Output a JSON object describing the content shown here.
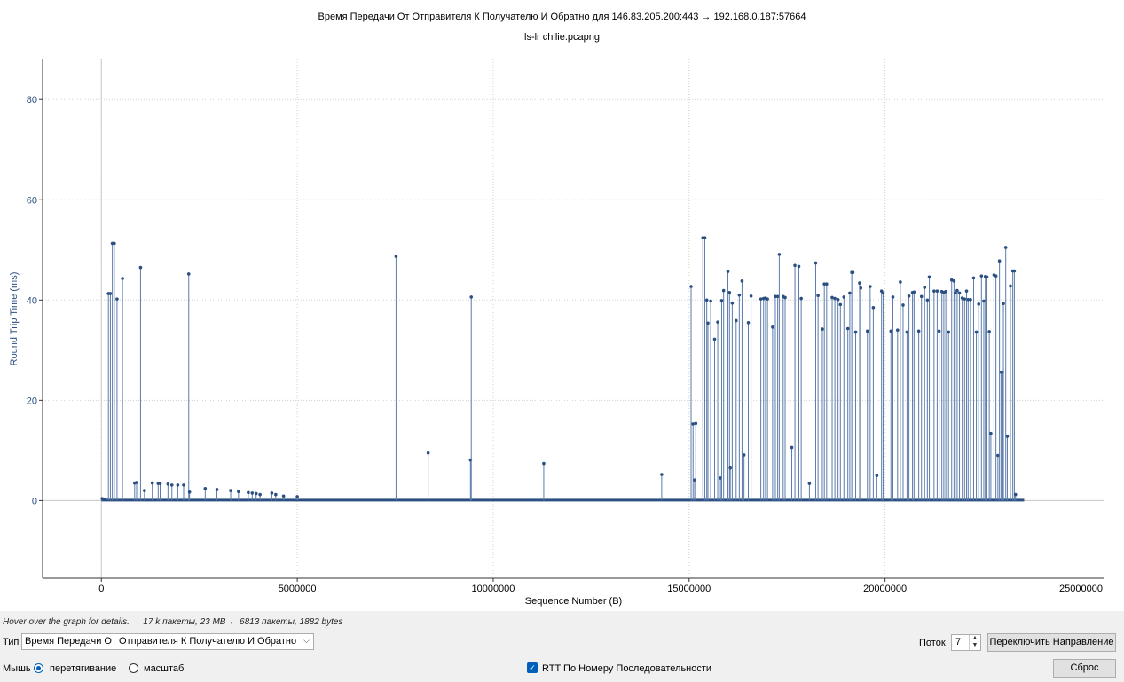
{
  "chart_data": {
    "type": "scatter",
    "title": "Время Передачи От Отправителя К Получателю И Обратно для 146.83.205.200:443 → 192.168.0.187:57664",
    "subtitle": "ls-lr chilie.pcapng",
    "xlabel": "Sequence Number (B)",
    "ylabel": "Round Trip Time (ms)",
    "xlim": [
      -1500000,
      25600000
    ],
    "ylim": [
      -15.5,
      88
    ],
    "x_ticks": [
      0,
      5000000,
      10000000,
      15000000,
      20000000,
      25000000
    ],
    "y_ticks": [
      0,
      20,
      40,
      60,
      80
    ],
    "grid": true,
    "style": "impulse",
    "color": "#2b4f81",
    "series_points": [
      [
        20000,
        0.4
      ],
      [
        100000,
        0.3
      ],
      [
        180000,
        41.3
      ],
      [
        230000,
        41.3
      ],
      [
        280000,
        51.3
      ],
      [
        330000,
        51.3
      ],
      [
        400000,
        40.2
      ],
      [
        540000,
        44.3
      ],
      [
        850000,
        3.5
      ],
      [
        900000,
        3.6
      ],
      [
        1000000,
        46.5
      ],
      [
        1100000,
        2.0
      ],
      [
        1300000,
        3.5
      ],
      [
        1450000,
        3.4
      ],
      [
        1500000,
        3.4
      ],
      [
        1700000,
        3.3
      ],
      [
        1800000,
        3.1
      ],
      [
        1950000,
        3.1
      ],
      [
        2100000,
        3.1
      ],
      [
        2230000,
        45.2
      ],
      [
        2250000,
        1.7
      ],
      [
        2650000,
        2.4
      ],
      [
        2950000,
        2.2
      ],
      [
        3300000,
        2.0
      ],
      [
        3500000,
        1.8
      ],
      [
        3750000,
        1.6
      ],
      [
        3850000,
        1.5
      ],
      [
        3950000,
        1.4
      ],
      [
        4050000,
        1.2
      ],
      [
        4350000,
        1.5
      ],
      [
        4450000,
        1.2
      ],
      [
        4650000,
        0.9
      ],
      [
        5000000,
        0.8
      ],
      [
        7520000,
        48.7
      ],
      [
        8340000,
        9.5
      ],
      [
        9420000,
        8.1
      ],
      [
        9440000,
        40.6
      ],
      [
        11290000,
        7.4
      ],
      [
        14300000,
        5.2
      ],
      [
        15050000,
        42.7
      ],
      [
        15100000,
        15.3
      ],
      [
        15140000,
        4.1
      ],
      [
        15170000,
        15.4
      ],
      [
        15350000,
        52.4
      ],
      [
        15400000,
        52.4
      ],
      [
        15450000,
        40.0
      ],
      [
        15480000,
        35.4
      ],
      [
        15550000,
        39.8
      ],
      [
        15650000,
        32.2
      ],
      [
        15730000,
        35.6
      ],
      [
        15800000,
        4.5
      ],
      [
        15830000,
        39.9
      ],
      [
        15880000,
        41.9
      ],
      [
        15990000,
        45.7
      ],
      [
        16030000,
        41.5
      ],
      [
        16050000,
        6.5
      ],
      [
        16100000,
        39.4
      ],
      [
        16200000,
        35.9
      ],
      [
        16280000,
        41.0
      ],
      [
        16350000,
        43.8
      ],
      [
        16400000,
        9.1
      ],
      [
        16510000,
        35.5
      ],
      [
        16580000,
        40.8
      ],
      [
        16830000,
        40.2
      ],
      [
        16900000,
        40.3
      ],
      [
        16950000,
        40.4
      ],
      [
        17000000,
        40.2
      ],
      [
        17130000,
        34.6
      ],
      [
        17200000,
        40.7
      ],
      [
        17260000,
        40.7
      ],
      [
        17300000,
        49.1
      ],
      [
        17400000,
        40.7
      ],
      [
        17450000,
        40.5
      ],
      [
        17620000,
        10.6
      ],
      [
        17700000,
        46.9
      ],
      [
        17800000,
        46.7
      ],
      [
        17860000,
        40.3
      ],
      [
        18070000,
        3.4
      ],
      [
        18230000,
        47.4
      ],
      [
        18290000,
        40.9
      ],
      [
        18400000,
        34.2
      ],
      [
        18450000,
        43.2
      ],
      [
        18510000,
        43.2
      ],
      [
        18650000,
        40.5
      ],
      [
        18720000,
        40.3
      ],
      [
        18800000,
        40.1
      ],
      [
        18860000,
        39.1
      ],
      [
        18950000,
        40.6
      ],
      [
        19050000,
        34.3
      ],
      [
        19100000,
        41.4
      ],
      [
        19150000,
        45.5
      ],
      [
        19180000,
        45.5
      ],
      [
        19250000,
        33.6
      ],
      [
        19350000,
        43.4
      ],
      [
        19380000,
        42.4
      ],
      [
        19550000,
        33.8
      ],
      [
        19620000,
        42.7
      ],
      [
        19700000,
        38.5
      ],
      [
        19790000,
        5.0
      ],
      [
        19910000,
        41.8
      ],
      [
        19950000,
        41.4
      ],
      [
        20150000,
        33.8
      ],
      [
        20200000,
        40.6
      ],
      [
        20320000,
        34.0
      ],
      [
        20390000,
        43.6
      ],
      [
        20460000,
        39.0
      ],
      [
        20560000,
        33.6
      ],
      [
        20610000,
        40.8
      ],
      [
        20700000,
        41.5
      ],
      [
        20740000,
        41.6
      ],
      [
        20860000,
        33.8
      ],
      [
        20930000,
        40.7
      ],
      [
        21010000,
        42.5
      ],
      [
        21080000,
        40.0
      ],
      [
        21130000,
        44.6
      ],
      [
        21250000,
        41.8
      ],
      [
        21330000,
        41.8
      ],
      [
        21380000,
        33.8
      ],
      [
        21450000,
        41.7
      ],
      [
        21500000,
        41.5
      ],
      [
        21550000,
        41.7
      ],
      [
        21620000,
        33.6
      ],
      [
        21700000,
        44.0
      ],
      [
        21760000,
        43.8
      ],
      [
        21790000,
        41.4
      ],
      [
        21840000,
        41.9
      ],
      [
        21900000,
        41.4
      ],
      [
        21970000,
        40.4
      ],
      [
        22030000,
        40.2
      ],
      [
        22080000,
        41.8
      ],
      [
        22120000,
        40.1
      ],
      [
        22180000,
        40.1
      ],
      [
        22260000,
        44.4
      ],
      [
        22330000,
        33.6
      ],
      [
        22390000,
        39.2
      ],
      [
        22460000,
        44.8
      ],
      [
        22520000,
        39.8
      ],
      [
        22560000,
        44.7
      ],
      [
        22600000,
        44.6
      ],
      [
        22660000,
        33.7
      ],
      [
        22700000,
        13.4
      ],
      [
        22780000,
        45.0
      ],
      [
        22830000,
        44.8
      ],
      [
        22880000,
        9.0
      ],
      [
        22920000,
        47.8
      ],
      [
        22960000,
        25.6
      ],
      [
        23000000,
        25.6
      ],
      [
        23020000,
        39.3
      ],
      [
        23080000,
        50.5
      ],
      [
        23120000,
        12.8
      ],
      [
        23200000,
        42.8
      ],
      [
        23260000,
        45.8
      ],
      [
        23300000,
        45.8
      ],
      [
        23330000,
        1.2
      ]
    ],
    "baseline_span": [
      0,
      23550000
    ]
  },
  "hint": "Hover over the graph for details. → 17 k пакеты, 23 MB ← 6813 пакеты, 1882 bytes",
  "controls": {
    "type_label": "Тип",
    "type_value": "Время Передачи От Отправителя К Получателю И Обратно",
    "stream_label": "Поток",
    "stream_value": "7",
    "switch_direction": "Переключить Направление",
    "mouse_label": "Мышь",
    "drag_label": "перетягивание",
    "zoom_label": "масштаб",
    "rtt_seq_label": "RTT По Номеру Последовательности",
    "reset": "Сброс"
  },
  "icons": {
    "dropdown": "chevron-down-icon",
    "spinner": "spin-arrows-icon"
  }
}
